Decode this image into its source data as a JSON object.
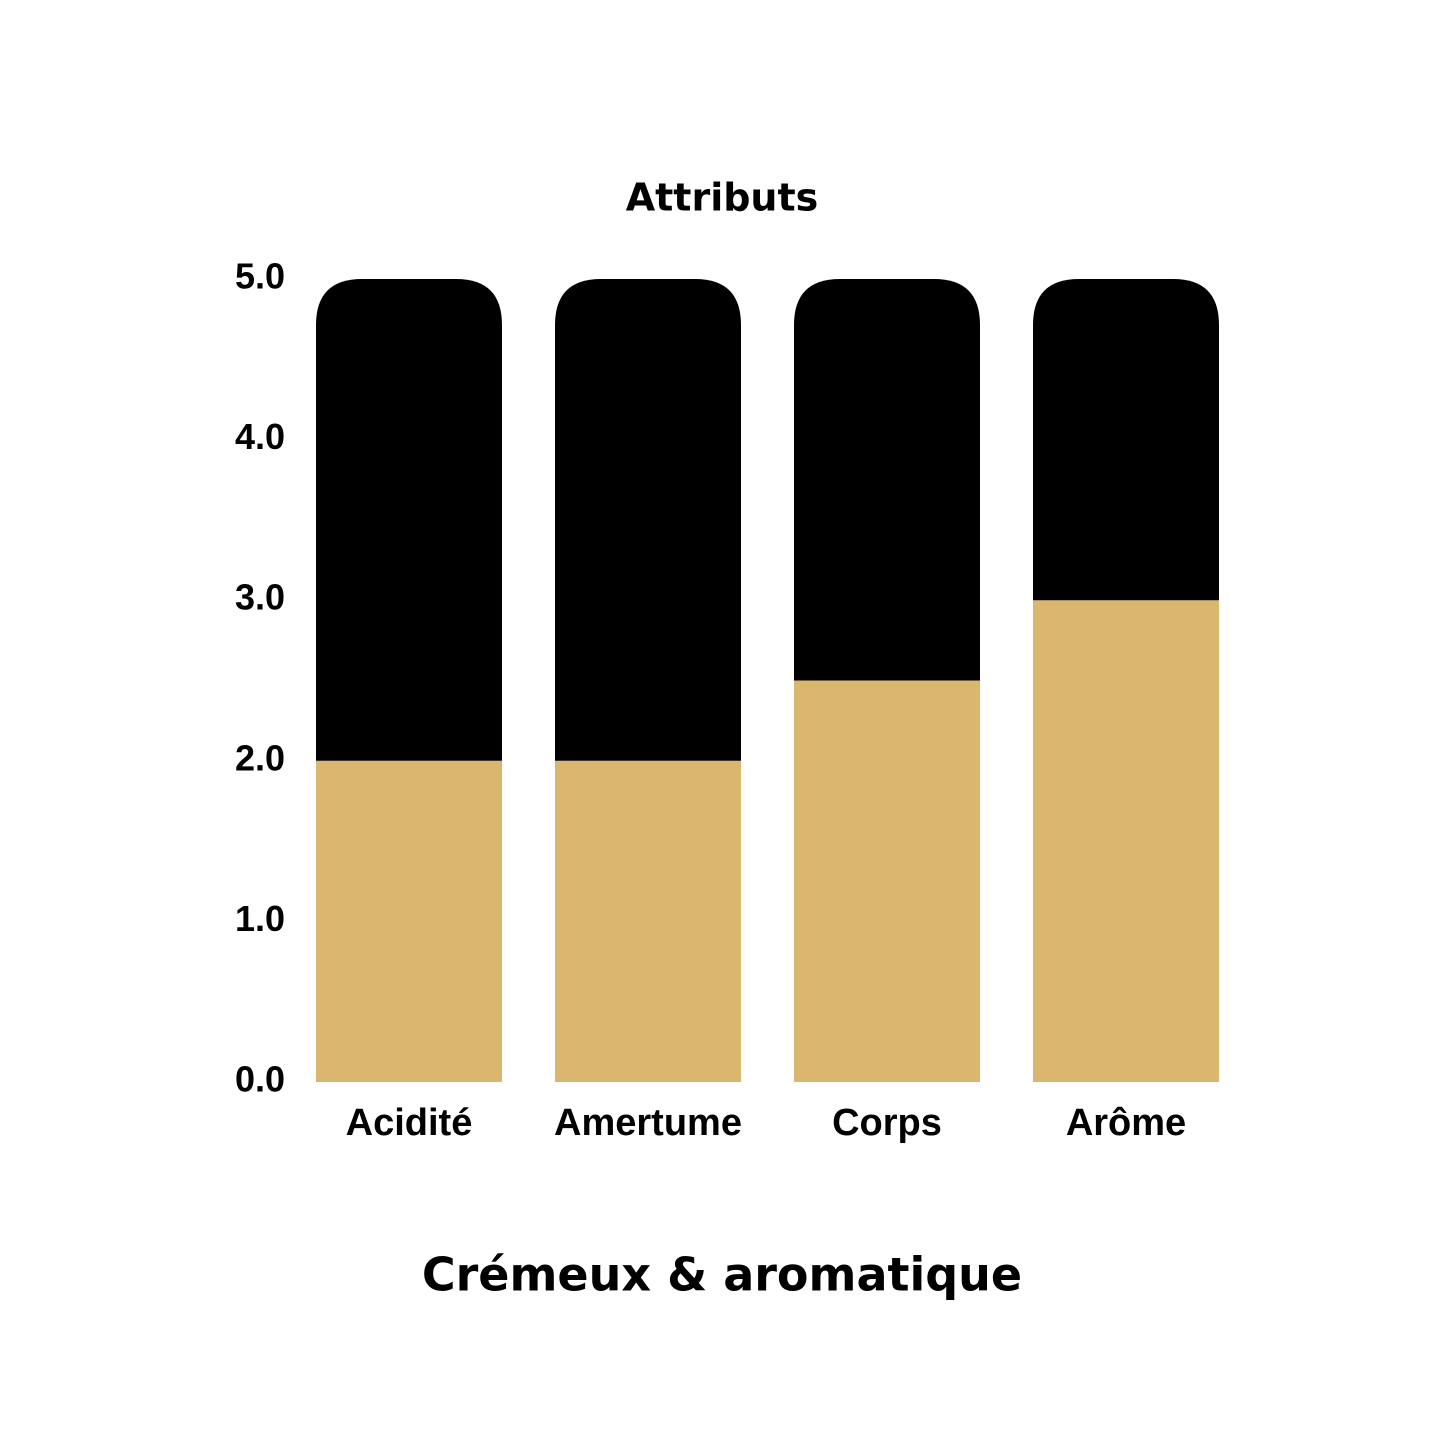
{
  "chart_data": {
    "type": "stacked-bar",
    "title": "Attributs",
    "caption": "Crémeux & aromatique",
    "categories": [
      "Acidité",
      "Amertume",
      "Corps",
      "Arôme"
    ],
    "series": [
      {
        "color": "#dbb66e",
        "values": [
          2,
          2,
          2.5,
          3
        ]
      },
      {
        "color": "#000000",
        "values": [
          3,
          3,
          2.5,
          2
        ]
      }
    ],
    "ylim": [
      0,
      5
    ],
    "yticks": [
      {
        "value": 0,
        "label": "0.0"
      },
      {
        "value": 1,
        "label": "1.0"
      },
      {
        "value": 2,
        "label": "2.0"
      },
      {
        "value": 3,
        "label": "3.0"
      },
      {
        "value": 4,
        "label": "4.0"
      },
      {
        "value": 5,
        "label": "5.0"
      }
    ],
    "grid": false
  }
}
